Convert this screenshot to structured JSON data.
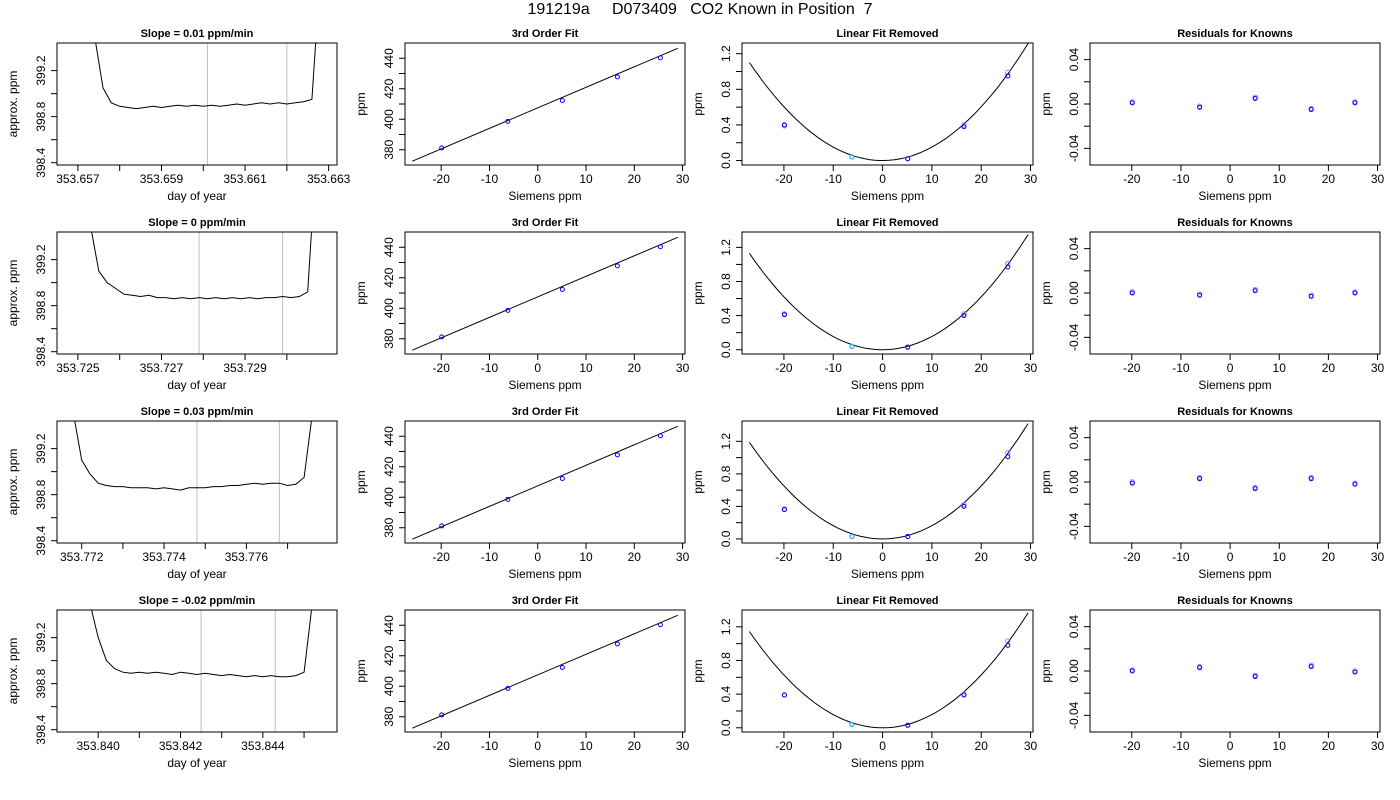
{
  "figure_title": "191219a     D073409   CO2 Known in Position  7",
  "chart_data": [
    {
      "row": 0,
      "col": 0,
      "type": "line",
      "title": "Slope =  0.01  ppm/min",
      "xlabel": "day of year",
      "ylabel": "approx. ppm",
      "xlim": [
        353.6565,
        353.6632
      ],
      "ylim": [
        398.38,
        399.44
      ],
      "xticks": [
        353.657,
        353.658,
        353.659,
        353.66,
        353.661,
        353.662,
        353.663
      ],
      "xtick_labels": [
        "353.657",
        "",
        "353.659",
        "",
        "353.661",
        "",
        "353.663"
      ],
      "yticks": [
        398.4,
        398.6,
        398.8,
        399.0,
        399.2
      ],
      "ytick_labels": [
        "398.4",
        "",
        "398.8",
        "",
        "399.2"
      ],
      "vlines": [
        353.6601,
        353.662
      ],
      "x": [
        353.6574,
        353.6576,
        353.6578,
        353.658,
        353.6582,
        353.6584,
        353.6586,
        353.6588,
        353.659,
        353.6592,
        353.6594,
        353.6596,
        353.6598,
        353.66,
        353.6602,
        353.6604,
        353.6606,
        353.6608,
        353.661,
        353.6612,
        353.6614,
        353.6616,
        353.6618,
        353.662,
        353.6622,
        353.6624,
        353.6626,
        353.6627
      ],
      "y": [
        399.5,
        399.05,
        398.92,
        398.89,
        398.88,
        398.87,
        398.88,
        398.89,
        398.88,
        398.89,
        398.9,
        398.89,
        398.9,
        398.89,
        398.9,
        398.89,
        398.9,
        398.91,
        398.9,
        398.91,
        398.92,
        398.91,
        398.92,
        398.91,
        398.92,
        398.93,
        398.95,
        399.5
      ]
    },
    {
      "row": 0,
      "col": 1,
      "type": "scatter",
      "title": "3rd Order Fit",
      "xlabel": "Siemens ppm",
      "ylabel": "ppm",
      "xlim": [
        -27.5,
        30.5
      ],
      "ylim": [
        370,
        450
      ],
      "xticks": [
        -20,
        -10,
        0,
        10,
        20,
        30
      ],
      "xtick_labels": [
        "-20",
        "-10",
        "0",
        "10",
        "20",
        "30"
      ],
      "yticks": [
        380,
        390,
        400,
        410,
        420,
        430,
        440
      ],
      "ytick_labels": [
        "380",
        "",
        "400",
        "",
        "420",
        "",
        "440"
      ],
      "x": [
        -19.9,
        -6.2,
        5.1,
        16.5,
        25.4
      ],
      "y": [
        381.2,
        398.6,
        412.3,
        427.8,
        440.3
      ],
      "fit": [
        [
          -26,
          372.5
        ],
        [
          29,
          446.5
        ]
      ]
    },
    {
      "row": 0,
      "col": 2,
      "type": "scatter",
      "title": "Linear Fit Removed",
      "xlabel": "Siemens ppm",
      "ylabel": "ppm",
      "xlim": [
        -28.5,
        30.5
      ],
      "ylim": [
        -0.05,
        1.32
      ],
      "xticks": [
        -20,
        -10,
        0,
        10,
        20,
        30
      ],
      "xtick_labels": [
        "-20",
        "-10",
        "0",
        "10",
        "20",
        "30"
      ],
      "yticks": [
        0,
        0.2,
        0.4,
        0.6,
        0.8,
        1.0,
        1.2
      ],
      "ytick_labels": [
        "0.0",
        "",
        "0.4",
        "",
        "0.8",
        "",
        "1.2"
      ],
      "x": [
        -19.9,
        -6.2,
        5.1,
        16.5,
        25.4
      ],
      "y": [
        0.4,
        0.04,
        0.02,
        0.38,
        0.95
      ],
      "y2": [
        0.39,
        0.04,
        0.02,
        0.4,
        0.99
      ],
      "fit_a": 0.00151
    },
    {
      "row": 0,
      "col": 3,
      "type": "scatter",
      "title": "Residuals for Knowns",
      "xlabel": "Siemens ppm",
      "ylabel": "ppm",
      "xlim": [
        -28.5,
        30.5
      ],
      "ylim": [
        -0.055,
        0.055
      ],
      "xticks": [
        -20,
        -10,
        0,
        10,
        20,
        30
      ],
      "xtick_labels": [
        "-20",
        "-10",
        "0",
        "10",
        "20",
        "30"
      ],
      "yticks": [
        -0.04,
        -0.02,
        0,
        0.02,
        0.04
      ],
      "ytick_labels": [
        "-0.04",
        "",
        "0.00",
        "",
        "0.04"
      ],
      "x": [
        -19.9,
        -6.2,
        5.1,
        16.5,
        25.4
      ],
      "y": [
        0.001,
        -0.003,
        0.005,
        -0.005,
        0.001
      ],
      "y2": [
        0.002,
        -0.002,
        0.006,
        -0.004,
        0.002
      ]
    },
    {
      "row": 1,
      "col": 0,
      "type": "line",
      "title": "Slope =  0  ppm/min",
      "xlabel": "day of year",
      "ylabel": "approx. ppm",
      "xlim": [
        353.7245,
        353.7312
      ],
      "ylim": [
        398.38,
        399.44
      ],
      "xticks": [
        353.725,
        353.726,
        353.727,
        353.728,
        353.729,
        353.73
      ],
      "xtick_labels": [
        "353.725",
        "",
        "353.727",
        "",
        "353.729",
        ""
      ],
      "yticks": [
        398.4,
        398.6,
        398.8,
        399.0,
        399.2
      ],
      "ytick_labels": [
        "398.4",
        "",
        "398.8",
        "",
        "399.2"
      ],
      "vlines": [
        353.7279,
        353.7299
      ],
      "x": [
        353.7253,
        353.7255,
        353.7257,
        353.7259,
        353.7261,
        353.7263,
        353.7265,
        353.7267,
        353.7269,
        353.7271,
        353.7273,
        353.7275,
        353.7277,
        353.7279,
        353.7281,
        353.7283,
        353.7285,
        353.7287,
        353.7289,
        353.7291,
        353.7293,
        353.7295,
        353.7297,
        353.7299,
        353.7301,
        353.7303,
        353.7305,
        353.7306
      ],
      "y": [
        399.5,
        399.1,
        399.0,
        398.95,
        398.9,
        398.89,
        398.88,
        398.89,
        398.87,
        398.87,
        398.86,
        398.87,
        398.86,
        398.87,
        398.86,
        398.87,
        398.86,
        398.87,
        398.86,
        398.87,
        398.86,
        398.87,
        398.87,
        398.88,
        398.87,
        398.88,
        398.92,
        399.5
      ]
    },
    {
      "row": 1,
      "col": 1,
      "type": "scatter",
      "title": "3rd Order Fit",
      "xlabel": "Siemens ppm",
      "ylabel": "ppm",
      "xlim": [
        -27.5,
        30.5
      ],
      "ylim": [
        370,
        450
      ],
      "xticks": [
        -20,
        -10,
        0,
        10,
        20,
        30
      ],
      "xtick_labels": [
        "-20",
        "-10",
        "0",
        "10",
        "20",
        "30"
      ],
      "yticks": [
        380,
        390,
        400,
        410,
        420,
        430,
        440
      ],
      "ytick_labels": [
        "380",
        "",
        "400",
        "",
        "420",
        "",
        "440"
      ],
      "x": [
        -19.9,
        -6.2,
        5.1,
        16.5,
        25.4
      ],
      "y": [
        381.2,
        398.6,
        412.3,
        427.8,
        440.3
      ],
      "fit": [
        [
          -26,
          372.5
        ],
        [
          29,
          446.5
        ]
      ]
    },
    {
      "row": 1,
      "col": 2,
      "type": "scatter",
      "title": "Linear Fit Removed",
      "xlabel": "Siemens ppm",
      "ylabel": "ppm",
      "xlim": [
        -28.5,
        30.5
      ],
      "ylim": [
        -0.05,
        1.38
      ],
      "xticks": [
        -20,
        -10,
        0,
        10,
        20,
        30
      ],
      "xtick_labels": [
        "-20",
        "-10",
        "0",
        "10",
        "20",
        "30"
      ],
      "yticks": [
        0,
        0.2,
        0.4,
        0.6,
        0.8,
        1.0,
        1.2
      ],
      "ytick_labels": [
        "0.0",
        "",
        "0.4",
        "",
        "0.8",
        "",
        "1.2"
      ],
      "x": [
        -19.9,
        -6.2,
        5.1,
        16.5,
        25.4
      ],
      "y": [
        0.41,
        0.04,
        0.03,
        0.4,
        0.97
      ],
      "y2": [
        0.42,
        0.04,
        0.03,
        0.42,
        1.01
      ],
      "fit_a": 0.00155
    },
    {
      "row": 1,
      "col": 3,
      "type": "scatter",
      "title": "Residuals for Knowns",
      "xlabel": "Siemens ppm",
      "ylabel": "ppm",
      "xlim": [
        -28.5,
        30.5
      ],
      "ylim": [
        -0.055,
        0.055
      ],
      "xticks": [
        -20,
        -10,
        0,
        10,
        20,
        30
      ],
      "xtick_labels": [
        "-20",
        "-10",
        "0",
        "10",
        "20",
        "30"
      ],
      "yticks": [
        -0.04,
        -0.02,
        0,
        0.02,
        0.04
      ],
      "ytick_labels": [
        "-0.04",
        "",
        "0.00",
        "",
        "0.04"
      ],
      "x": [
        -19.9,
        -6.2,
        5.1,
        16.5,
        25.4
      ],
      "y": [
        0.0,
        -0.002,
        0.002,
        -0.003,
        0.0
      ],
      "y2": [
        0.001,
        -0.001,
        0.003,
        -0.002,
        0.001
      ]
    },
    {
      "row": 2,
      "col": 0,
      "type": "line",
      "title": "Slope =  0.03  ppm/min",
      "xlabel": "day of year",
      "ylabel": "approx. ppm",
      "xlim": [
        353.7714,
        353.7782
      ],
      "ylim": [
        398.38,
        399.44
      ],
      "xticks": [
        353.772,
        353.773,
        353.774,
        353.775,
        353.776,
        353.777
      ],
      "xtick_labels": [
        "353.772",
        "",
        "353.774",
        "",
        "353.776",
        ""
      ],
      "yticks": [
        398.4,
        398.6,
        398.8,
        399.0,
        399.2
      ],
      "ytick_labels": [
        "398.4",
        "",
        "398.8",
        "",
        "399.2"
      ],
      "vlines": [
        353.7748,
        353.7768
      ],
      "x": [
        353.7718,
        353.772,
        353.7722,
        353.7724,
        353.7726,
        353.7728,
        353.773,
        353.7732,
        353.7734,
        353.7736,
        353.7738,
        353.774,
        353.7742,
        353.7744,
        353.7746,
        353.7748,
        353.775,
        353.7752,
        353.7754,
        353.7756,
        353.7758,
        353.776,
        353.7762,
        353.7764,
        353.7766,
        353.7768,
        353.777,
        353.7772,
        353.7774,
        353.7776
      ],
      "y": [
        399.5,
        399.1,
        398.98,
        398.9,
        398.88,
        398.87,
        398.87,
        398.86,
        398.86,
        398.86,
        398.85,
        398.86,
        398.85,
        398.84,
        398.86,
        398.86,
        398.86,
        398.87,
        398.87,
        398.88,
        398.88,
        398.89,
        398.9,
        398.89,
        398.9,
        398.9,
        398.88,
        398.89,
        398.95,
        399.5
      ]
    },
    {
      "row": 2,
      "col": 1,
      "type": "scatter",
      "title": "3rd Order Fit",
      "xlabel": "Siemens ppm",
      "ylabel": "ppm",
      "xlim": [
        -27.5,
        30.5
      ],
      "ylim": [
        370,
        450
      ],
      "xticks": [
        -20,
        -10,
        0,
        10,
        20,
        30
      ],
      "xtick_labels": [
        "-20",
        "-10",
        "0",
        "10",
        "20",
        "30"
      ],
      "yticks": [
        380,
        390,
        400,
        410,
        420,
        430,
        440
      ],
      "ytick_labels": [
        "380",
        "",
        "400",
        "",
        "420",
        "",
        "440"
      ],
      "x": [
        -19.9,
        -6.2,
        5.1,
        16.5,
        25.4
      ],
      "y": [
        381.2,
        398.6,
        412.3,
        427.8,
        440.3
      ],
      "fit": [
        [
          -26,
          372.5
        ],
        [
          29,
          446.5
        ]
      ]
    },
    {
      "row": 2,
      "col": 2,
      "type": "scatter",
      "title": "Linear Fit Removed",
      "xlabel": "Siemens ppm",
      "ylabel": "ppm",
      "xlim": [
        -28.5,
        30.5
      ],
      "ylim": [
        -0.05,
        1.45
      ],
      "xticks": [
        -20,
        -10,
        0,
        10,
        20,
        30
      ],
      "xtick_labels": [
        "-20",
        "-10",
        "0",
        "10",
        "20",
        "30"
      ],
      "yticks": [
        0,
        0.2,
        0.4,
        0.6,
        0.8,
        1.0,
        1.2
      ],
      "ytick_labels": [
        "0.0",
        "",
        "0.4",
        "",
        "0.8",
        "",
        "1.2"
      ],
      "x": [
        -19.9,
        -6.2,
        5.1,
        16.5,
        25.4
      ],
      "y": [
        0.36,
        0.03,
        0.03,
        0.4,
        1.01
      ],
      "y2": [
        0.37,
        0.03,
        0.03,
        0.42,
        1.06
      ],
      "fit_a": 0.00163
    },
    {
      "row": 2,
      "col": 3,
      "type": "scatter",
      "title": "Residuals for Knowns",
      "xlabel": "Siemens ppm",
      "ylabel": "ppm",
      "xlim": [
        -28.5,
        30.5
      ],
      "ylim": [
        -0.055,
        0.055
      ],
      "xticks": [
        -20,
        -10,
        0,
        10,
        20,
        30
      ],
      "xtick_labels": [
        "-20",
        "-10",
        "0",
        "10",
        "20",
        "30"
      ],
      "yticks": [
        -0.04,
        -0.02,
        0,
        0.02,
        0.04
      ],
      "ytick_labels": [
        "-0.04",
        "",
        "0.00",
        "",
        "0.04"
      ],
      "x": [
        -19.9,
        -6.2,
        5.1,
        16.5,
        25.4
      ],
      "y": [
        -0.001,
        0.003,
        -0.006,
        0.003,
        -0.002
      ],
      "y2": [
        0.0,
        0.004,
        -0.005,
        0.004,
        -0.001
      ]
    },
    {
      "row": 3,
      "col": 0,
      "type": "line",
      "title": "Slope =  -0.02  ppm/min",
      "xlabel": "day of year",
      "ylabel": "approx. ppm",
      "xlim": [
        353.839,
        353.8458
      ],
      "ylim": [
        398.38,
        399.44
      ],
      "xticks": [
        353.84,
        353.841,
        353.842,
        353.843,
        353.844,
        353.845
      ],
      "xtick_labels": [
        "353.840",
        "",
        "353.842",
        "",
        "353.844",
        ""
      ],
      "yticks": [
        398.4,
        398.6,
        398.8,
        399.0,
        399.2
      ],
      "ytick_labels": [
        "398.4",
        "",
        "398.8",
        "",
        "399.2"
      ],
      "vlines": [
        353.8425,
        353.8443
      ],
      "x": [
        353.8398,
        353.84,
        353.8402,
        353.8404,
        353.8406,
        353.8408,
        353.841,
        353.8412,
        353.8414,
        353.8416,
        353.8418,
        353.842,
        353.8422,
        353.8424,
        353.8426,
        353.8428,
        353.843,
        353.8432,
        353.8434,
        353.8436,
        353.8438,
        353.844,
        353.8442,
        353.8444,
        353.8446,
        353.8448,
        353.845,
        353.8452
      ],
      "y": [
        399.5,
        399.2,
        399.0,
        398.93,
        398.9,
        398.89,
        398.9,
        398.89,
        398.9,
        398.89,
        398.88,
        398.9,
        398.89,
        398.88,
        398.89,
        398.88,
        398.87,
        398.88,
        398.87,
        398.86,
        398.87,
        398.86,
        398.87,
        398.86,
        398.86,
        398.87,
        398.9,
        399.5
      ]
    },
    {
      "row": 3,
      "col": 1,
      "type": "scatter",
      "title": "3rd Order Fit",
      "xlabel": "Siemens ppm",
      "ylabel": "ppm",
      "xlim": [
        -27.5,
        30.5
      ],
      "ylim": [
        370,
        450
      ],
      "xticks": [
        -20,
        -10,
        0,
        10,
        20,
        30
      ],
      "xtick_labels": [
        "-20",
        "-10",
        "0",
        "10",
        "20",
        "30"
      ],
      "yticks": [
        380,
        390,
        400,
        410,
        420,
        430,
        440
      ],
      "ytick_labels": [
        "380",
        "",
        "400",
        "",
        "420",
        "",
        "440"
      ],
      "x": [
        -19.9,
        -6.2,
        5.1,
        16.5,
        25.4
      ],
      "y": [
        381.2,
        398.6,
        412.3,
        427.8,
        440.3
      ],
      "fit": [
        [
          -26,
          372.5
        ],
        [
          29,
          446.5
        ]
      ]
    },
    {
      "row": 3,
      "col": 2,
      "type": "scatter",
      "title": "Linear Fit Removed",
      "xlabel": "Siemens ppm",
      "ylabel": "ppm",
      "xlim": [
        -28.5,
        30.5
      ],
      "ylim": [
        -0.05,
        1.4
      ],
      "xticks": [
        -20,
        -10,
        0,
        10,
        20,
        30
      ],
      "xtick_labels": [
        "-20",
        "-10",
        "0",
        "10",
        "20",
        "30"
      ],
      "yticks": [
        0,
        0.2,
        0.4,
        0.6,
        0.8,
        1.0,
        1.2
      ],
      "ytick_labels": [
        "0.0",
        "",
        "0.4",
        "",
        "0.8",
        "",
        "1.2"
      ],
      "x": [
        -19.9,
        -6.2,
        5.1,
        16.5,
        25.4
      ],
      "y": [
        0.39,
        0.04,
        0.03,
        0.39,
        0.98
      ],
      "y2": [
        0.39,
        0.04,
        0.03,
        0.4,
        1.03
      ],
      "fit_a": 0.00157
    },
    {
      "row": 3,
      "col": 3,
      "type": "scatter",
      "title": "Residuals for Knowns",
      "xlabel": "Siemens ppm",
      "ylabel": "ppm",
      "xlim": [
        -28.5,
        30.5
      ],
      "ylim": [
        -0.055,
        0.055
      ],
      "xticks": [
        -20,
        -10,
        0,
        10,
        20,
        30
      ],
      "xtick_labels": [
        "-20",
        "-10",
        "0",
        "10",
        "20",
        "30"
      ],
      "yticks": [
        -0.04,
        -0.02,
        0,
        0.02,
        0.04
      ],
      "ytick_labels": [
        "-0.04",
        "",
        "0.00",
        "",
        "0.04"
      ],
      "x": [
        -19.9,
        -6.2,
        5.1,
        16.5,
        25.4
      ],
      "y": [
        0.0,
        0.003,
        -0.005,
        0.004,
        -0.001
      ],
      "y2": [
        0.001,
        0.004,
        -0.004,
        0.005,
        0.0
      ]
    }
  ],
  "colors": {
    "line": "#000000",
    "vline": "#c0c0c0",
    "point_blue": "#0000ff",
    "point_violet": "#cc66ff",
    "point_cyan": "#00bfff"
  }
}
